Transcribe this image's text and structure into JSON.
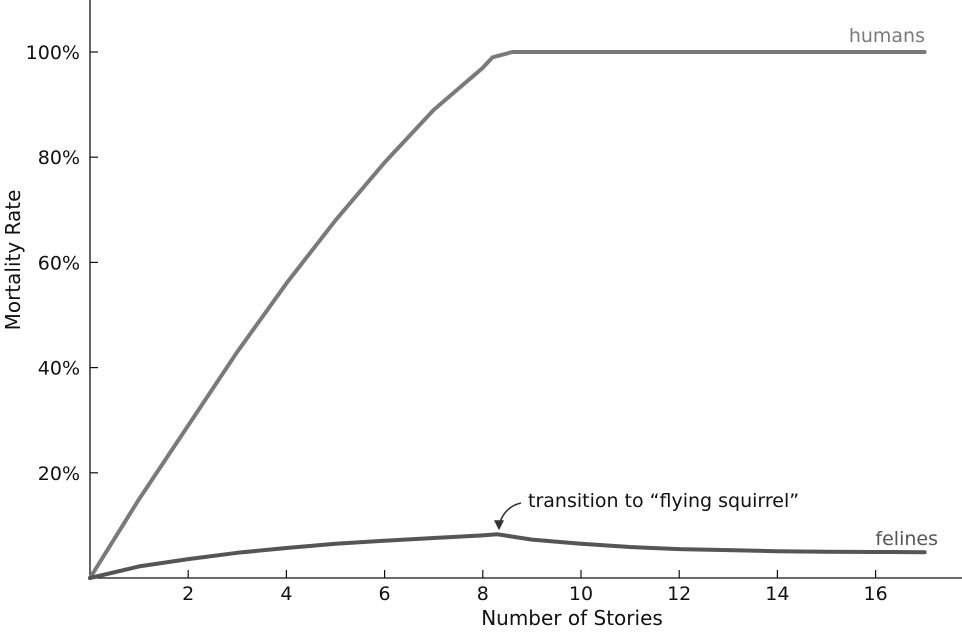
{
  "chart_data": {
    "type": "line",
    "title": "",
    "xlabel": "Number of Stories",
    "ylabel": "Mortality Rate",
    "xlim": [
      0,
      17.6
    ],
    "ylim": [
      0,
      110
    ],
    "xticks": [
      2,
      4,
      6,
      8,
      10,
      12,
      14,
      16
    ],
    "yticks": [
      20,
      40,
      60,
      80,
      100
    ],
    "ytick_labels": [
      "20%",
      "40%",
      "60%",
      "80%",
      "100%"
    ],
    "grid": false,
    "legend": "none",
    "series": [
      {
        "name": "humans",
        "color": "#7a7a7a",
        "x": [
          0,
          1,
          2,
          3,
          4,
          5,
          6,
          7,
          8,
          8.2,
          8.6,
          10,
          12,
          14,
          16,
          17
        ],
        "y": [
          0,
          15,
          29,
          43,
          56,
          68,
          79,
          89,
          97,
          99,
          100,
          100,
          100,
          100,
          100,
          100
        ]
      },
      {
        "name": "felines",
        "color": "#555555",
        "x": [
          0,
          1,
          2,
          3,
          4,
          5,
          6,
          7,
          8,
          8.3,
          9,
          10,
          11,
          12,
          13,
          14,
          15,
          16,
          17
        ],
        "y": [
          0,
          2.2,
          3.6,
          4.8,
          5.7,
          6.5,
          7.1,
          7.6,
          8.1,
          8.3,
          7.3,
          6.5,
          5.9,
          5.5,
          5.3,
          5.1,
          5.0,
          4.95,
          4.9
        ]
      }
    ],
    "annotations": [
      {
        "text": "transition to “flying squirrel”",
        "target_x": 8.3,
        "target_y": 8.3
      }
    ]
  }
}
